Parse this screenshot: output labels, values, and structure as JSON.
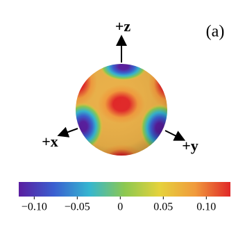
{
  "chart_data": {
    "type": "sphere",
    "panel_label": "(a)",
    "axis_labels": {
      "x": "+x",
      "y": "+y",
      "z": "+z"
    },
    "colormap": [
      "#5a1ea0",
      "#3a5fd0",
      "#35b6d0",
      "#8cc850",
      "#e6d23c",
      "#f09a3c",
      "#e02828"
    ],
    "clim": [
      -0.118,
      0.128
    ],
    "cticks": [
      {
        "value": -0.1,
        "label": "−0.10"
      },
      {
        "value": -0.05,
        "label": "−0.05"
      },
      0,
      0.05,
      {
        "value": 0.1,
        "label": "0.10"
      }
    ]
  }
}
